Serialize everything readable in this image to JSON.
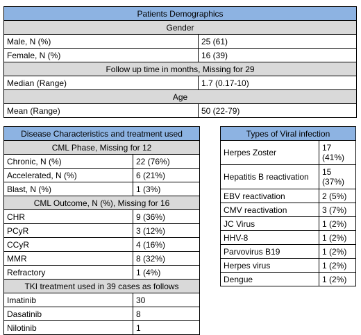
{
  "demographics": {
    "title": "Patients Demographics",
    "gender_header": "Gender",
    "gender_rows": [
      {
        "label": "Male, N (%)",
        "value": "25 (61)"
      },
      {
        "label": "Female, N (%)",
        "value": "16 (39)"
      }
    ],
    "followup_header": "Follow up time in months, Missing for 29",
    "followup_rows": [
      {
        "label": "Median (Range)",
        "value": "1.7 (0.17-10)"
      }
    ],
    "age_header": "Age",
    "age_rows": [
      {
        "label": "Mean (Range)",
        "value": "50 (22-79)"
      }
    ]
  },
  "disease": {
    "title": "Disease Characteristics and treatment used",
    "phase_header": "CML Phase, Missing for 12",
    "phase_rows": [
      {
        "label": "Chronic, N (%)",
        "value": "22 (76%)"
      },
      {
        "label": "Accelerated, N (%)",
        "value": "6 (21%)"
      },
      {
        "label": "Blast, N (%)",
        "value": "1 (3%)"
      }
    ],
    "outcome_header": "CML Outcome, N (%), Missing for 16",
    "outcome_rows": [
      {
        "label": "CHR",
        "value": "9 (36%)"
      },
      {
        "label": "PCyR",
        "value": "3 (12%)"
      },
      {
        "label": "CCyR",
        "value": "4 (16%)"
      },
      {
        "label": "MMR",
        "value": "8 (32%)"
      },
      {
        "label": "Refractory",
        "value": "1 (4%)"
      }
    ],
    "tki_header": "TKI treatment used in 39 cases as follows",
    "tki_rows": [
      {
        "label": "Imatinib",
        "value": "30"
      },
      {
        "label": "Dasatinib",
        "value": "8"
      },
      {
        "label": "Nilotinib",
        "value": "1"
      }
    ]
  },
  "viral": {
    "title": "Types of Viral infection",
    "rows": [
      {
        "label": "Herpes Zoster",
        "value": "17 (41%)"
      },
      {
        "label": "Hepatitis B reactivation",
        "value": "15 (37%)"
      },
      {
        "label": "EBV reactivation",
        "value": "2 (5%)"
      },
      {
        "label": "CMV reactivation",
        "value": "3 (7%)"
      },
      {
        "label": "JC Virus",
        "value": "1 (2%)"
      },
      {
        "label": "HHV-8",
        "value": "1 (2%)"
      },
      {
        "label": "Parvovirus B19",
        "value": "1 (2%)"
      },
      {
        "label": "Herpes virus",
        "value": "1 (2%)"
      },
      {
        "label": "Dengue",
        "value": "1 (2%)"
      }
    ]
  }
}
